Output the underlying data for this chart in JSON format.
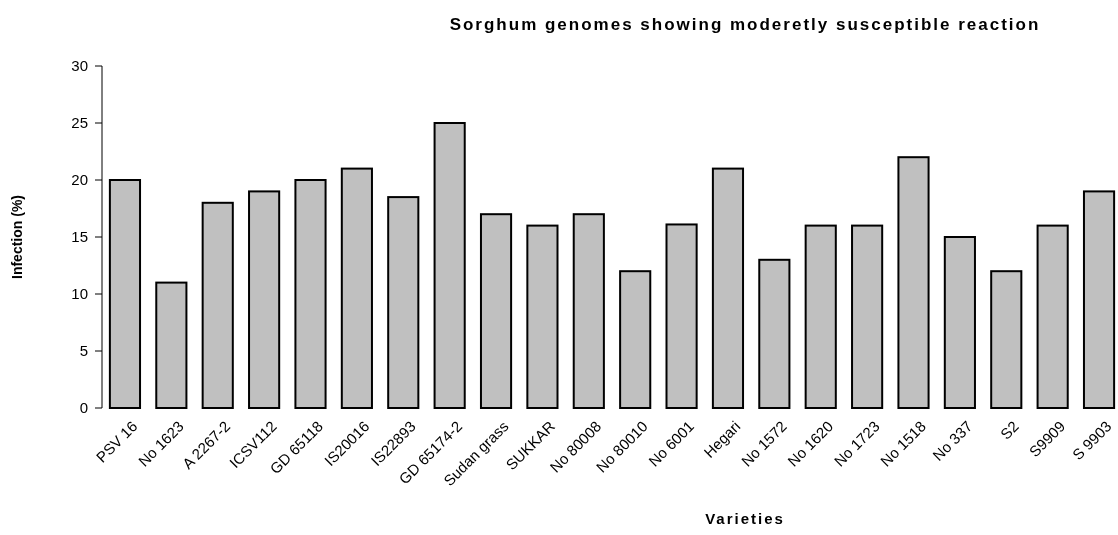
{
  "chart_data": {
    "type": "bar",
    "title": "Sorghum genomes showing moderetly susceptible reaction",
    "xlabel": "Varieties",
    "ylabel": "Infection (%)",
    "categories": [
      "PSV 16",
      "No 1623",
      "A 2267-2",
      "ICSV112",
      "GD 65118",
      "IS20016",
      "IS22893",
      "GD 65174-2",
      "Sudan grass",
      "SUKKAR",
      "No 80008",
      "No 80010",
      "No 6001",
      "Hegari",
      "No 1572",
      "No 1620",
      "No 1723",
      "No 1518",
      "No 337",
      "S2",
      "S9909",
      "S 9903"
    ],
    "values": [
      20,
      11,
      18,
      19,
      20,
      21,
      18.5,
      25,
      17,
      16,
      17,
      12,
      16.1,
      21,
      13,
      16,
      16,
      22,
      15,
      12,
      16,
      19
    ],
    "color": "#c0c0c0",
    "ylim": [
      0,
      30
    ],
    "yticks": [
      0,
      5,
      10,
      15,
      20,
      25,
      30
    ],
    "grid": false
  }
}
